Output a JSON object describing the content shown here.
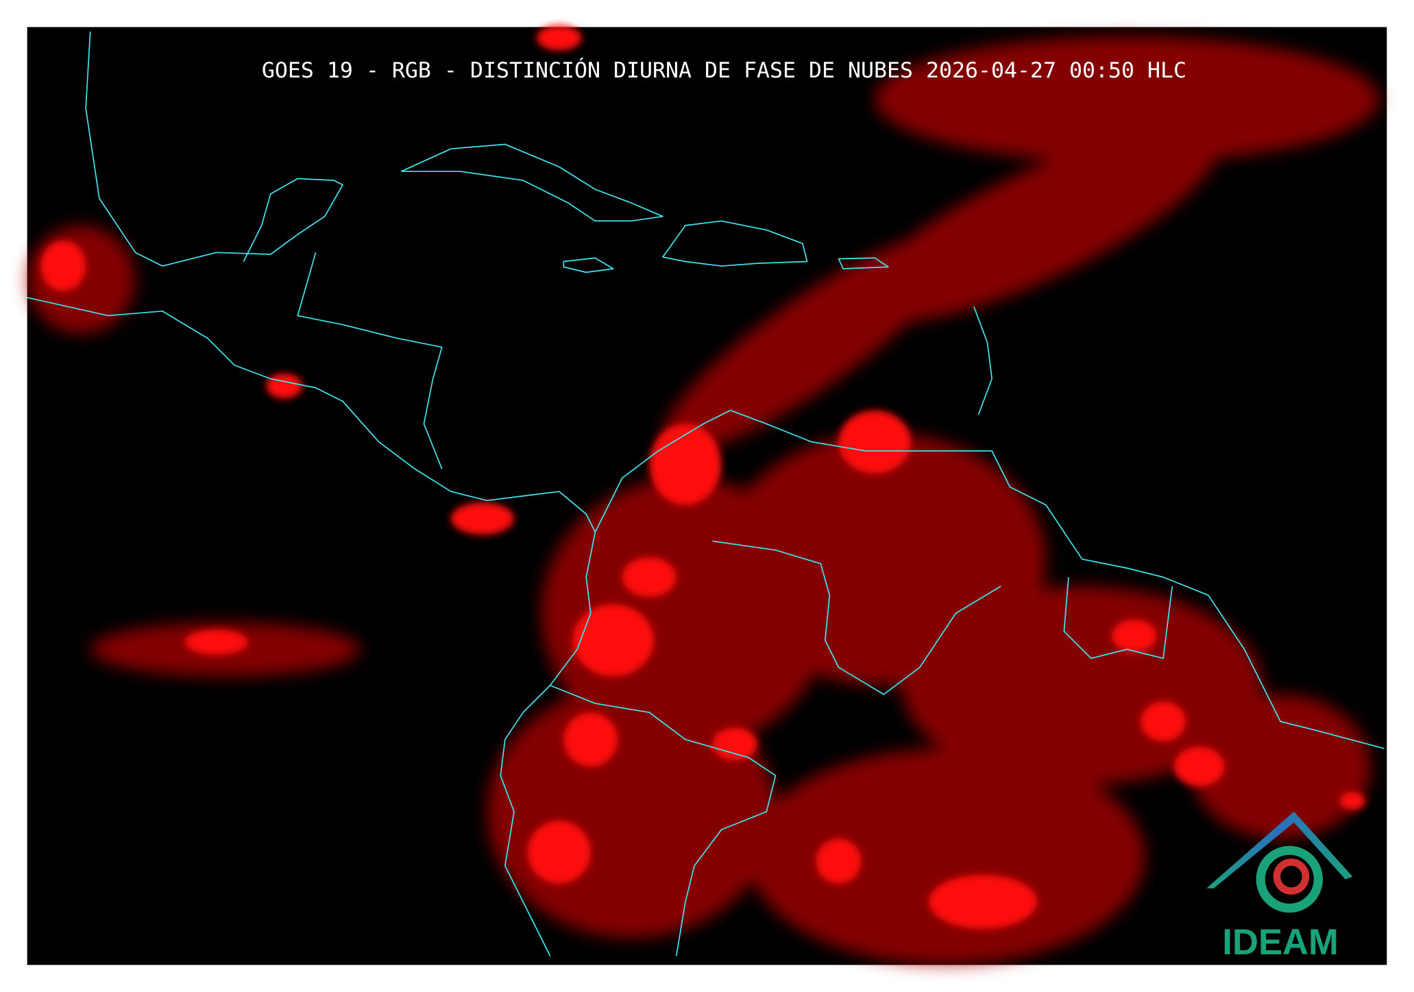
{
  "title": "GOES 19 - RGB - DISTINCIÓN DIURNA DE FASE DE NUBES 2026-04-27 00:50 HLC",
  "logo": {
    "text": "IDEAM"
  }
}
